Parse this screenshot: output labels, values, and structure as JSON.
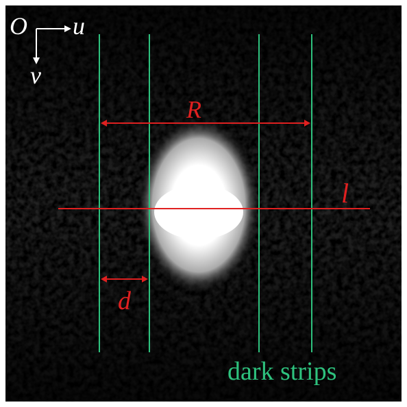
{
  "axes": {
    "origin": "O",
    "u": "u",
    "v": "v"
  },
  "labels": {
    "R": "R",
    "l": "l",
    "d": "d",
    "dark_strips": "dark strips"
  }
}
